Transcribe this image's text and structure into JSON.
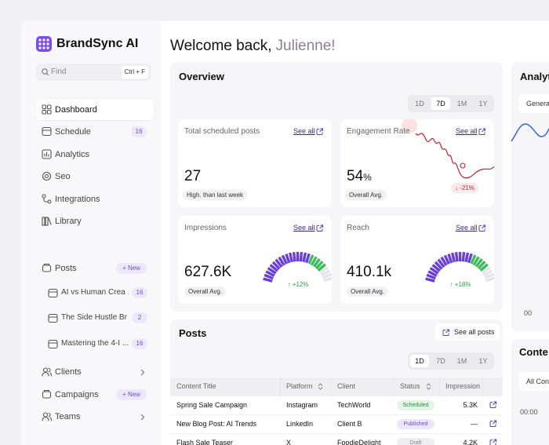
{
  "sidebar": {
    "brand": "BrandSync AI",
    "search": {
      "placeholder": "Find",
      "shortcut": "Ctrl + F"
    },
    "nav": [
      {
        "label": "Dashboard"
      },
      {
        "label": "Schedule",
        "badge": 16
      },
      {
        "label": "Analytics"
      },
      {
        "label": "Seo"
      },
      {
        "label": "Integrations"
      },
      {
        "label": "Library"
      }
    ],
    "active_nav": 0,
    "posts": {
      "label": "Posts",
      "action": "+ New",
      "items": [
        {
          "label": "AI vs Human Crea ...",
          "badge": 16
        },
        {
          "label": "The Side Hustle Br ...",
          "badge": 2
        },
        {
          "label": "Mastering the 4-I ...",
          "badge": 16
        }
      ]
    },
    "groups": [
      {
        "label": "Clients"
      },
      {
        "label": "Campaigns",
        "action": "+ New"
      },
      {
        "label": "Teams"
      }
    ]
  },
  "header": {
    "greeting": "Welcome back,",
    "name": "Julienne!"
  },
  "overview": {
    "title": "Overview",
    "ranges": [
      "1D",
      "7D",
      "1M",
      "1Y"
    ],
    "active_range": 1,
    "cards": [
      {
        "title": "Total scheduled posts",
        "link": "See all",
        "value": 27,
        "note": "High. than last week"
      },
      {
        "title": "Engagement Rate",
        "link": "See all",
        "value": 54,
        "unit": "%",
        "note": "Overall Avg.",
        "change": "↓ -21%",
        "chart": "sparkline"
      },
      {
        "title": "Impressions",
        "link": "See all",
        "value": "627.6K",
        "note": "Overall Avg.",
        "change": "↑ +12%",
        "chart": "gauge"
      },
      {
        "title": "Reach",
        "link": "See all",
        "value": "410.1k",
        "note": "Overall Avg.",
        "change": "↑ +18%",
        "chart": "gauge"
      }
    ]
  },
  "posts": {
    "title": "Posts",
    "action": "See all posts",
    "ranges": [
      "1D",
      "7D",
      "1M",
      "1Y"
    ],
    "active_range": 0,
    "columns": [
      "Content Title",
      "Platform",
      "Client",
      "Status",
      "Impression"
    ],
    "rows": [
      {
        "title": "Spring Sale Campaign",
        "platform": "Instagram",
        "client": "TechWorld",
        "status": "Scheduled",
        "impression": "5.3K",
        "status_color": "#2f8a3e",
        "status_bg": "#e3f5e6"
      },
      {
        "title": "New Blog Post: AI Trends",
        "platform": "LinkedIn",
        "client": "Client B",
        "status": "Published",
        "impression": "—",
        "status_color": "#6b4fd8",
        "status_bg": "#ece6fb"
      },
      {
        "title": "Flash Sale Teaser",
        "platform": "X",
        "client": "FoodieDelight",
        "status": "Draft",
        "impression": "4.2K",
        "status_color": "#888",
        "status_bg": "#eeeef1"
      }
    ]
  },
  "analytics": {
    "title": "Analyti",
    "filter": "Genera",
    "axis_label": "00"
  },
  "content": {
    "title": "Conte",
    "filter": "All Con",
    "time": "00:00"
  }
}
